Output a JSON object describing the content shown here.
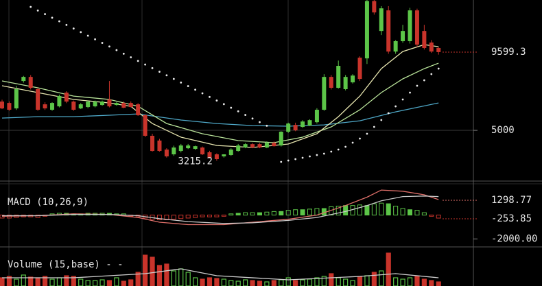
{
  "chart_data": [
    {
      "type": "candlestick",
      "up_color": "#5cc548",
      "down_color": "#c9342b",
      "open": [
        6690,
        6610,
        6290,
        7900,
        8140,
        7420,
        6530,
        6210,
        6410,
        7220,
        6690,
        6290,
        6370,
        6410,
        6490,
        6810,
        6490,
        6610,
        6610,
        6530,
        5890,
        4680,
        4400,
        3870,
        3590,
        3790,
        3950,
        3910,
        3990,
        3710,
        3590,
        3470,
        3550,
        3790,
        3990,
        4190,
        4190,
        3990,
        4270,
        4110,
        4920,
        5320,
        5200,
        5280,
        5480,
        6210,
        8140,
        7500,
        7420,
        7820,
        9270,
        9230,
        12600,
        10840,
        12050,
        9630,
        10240,
        10240,
        12050,
        10840,
        10160,
        9840
      ],
      "high": [
        6800,
        6700,
        7620,
        8200,
        8250,
        7500,
        6650,
        6650,
        7100,
        7300,
        6750,
        6600,
        6750,
        6750,
        6750,
        7900,
        6650,
        6700,
        6700,
        6600,
        5950,
        4800,
        4500,
        3950,
        4100,
        4200,
        4200,
        4100,
        4050,
        3800,
        3650,
        3600,
        3950,
        4200,
        4250,
        4250,
        4250,
        4350,
        4350,
        4950,
        5450,
        5450,
        5600,
        5650,
        6300,
        8300,
        8250,
        9100,
        8250,
        8300,
        9350,
        12660,
        12660,
        12300,
        12300,
        10300,
        11200,
        12200,
        12150,
        11200,
        10300,
        9900
      ],
      "low": [
        6250,
        6150,
        6200,
        7800,
        7400,
        6150,
        6200,
        6150,
        6350,
        6600,
        6150,
        6250,
        6300,
        6350,
        6450,
        6350,
        6450,
        6300,
        6350,
        5850,
        4600,
        3750,
        3750,
        3400,
        3500,
        3700,
        3900,
        3850,
        3550,
        3350,
        3215.2,
        3400,
        3500,
        3750,
        3950,
        3950,
        3950,
        3950,
        4050,
        4050,
        4850,
        4950,
        5150,
        5250,
        5400,
        6150,
        7400,
        7450,
        7350,
        7750,
        7900,
        8900,
        11800,
        10600,
        9500,
        9500,
        10150,
        10100,
        9900,
        9750,
        9550,
        9450
      ],
      "close": [
        6290,
        6210,
        7420,
        8140,
        7500,
        6210,
        6290,
        6610,
        7020,
        6690,
        6210,
        6530,
        6690,
        6690,
        6690,
        6410,
        6610,
        6330,
        6370,
        5890,
        4680,
        3790,
        3790,
        3470,
        3990,
        4110,
        4110,
        4070,
        3590,
        3390,
        3310,
        3590,
        3870,
        4110,
        4190,
        3990,
        3990,
        4270,
        4070,
        4920,
        5400,
        5000,
        5520,
        5600,
        6210,
        8140,
        7500,
        8790,
        8140,
        8220,
        8020,
        12600,
        11930,
        12170,
        9630,
        10240,
        10840,
        12050,
        10040,
        9840,
        9630,
        9599.3
      ],
      "series": [
        {
          "color": "#4fa9c9",
          "x": [
            0,
            5,
            10,
            15,
            19,
            25,
            30,
            35,
            40,
            45,
            50,
            55,
            61
          ],
          "values": [
            5725,
            5806,
            5806,
            5887,
            5967,
            5605,
            5403,
            5282,
            5242,
            5322,
            5564,
            6088,
            6612
          ]
        },
        {
          "color": "#b9e39a",
          "x": [
            0,
            5,
            10,
            15,
            19,
            23,
            28,
            33,
            38,
            42,
            46,
            50,
            53,
            56,
            59,
            61
          ],
          "values": [
            7902,
            7499,
            7015,
            6814,
            6411,
            5403,
            4799,
            4396,
            4275,
            4597,
            5202,
            6209,
            7217,
            8023,
            8627,
            8949
          ]
        },
        {
          "color": "#e8e6b0",
          "x": [
            0,
            5,
            10,
            15,
            18,
            21,
            25,
            30,
            35,
            40,
            44,
            47,
            50,
            53,
            56,
            59,
            61
          ],
          "values": [
            7620,
            7217,
            6814,
            6612,
            6411,
            5403,
            4597,
            4113,
            3993,
            4194,
            4799,
            5806,
            7015,
            8627,
            9635,
            10038,
            9917
          ]
        }
      ],
      "sar": [
        null,
        null,
        null,
        null,
        12254,
        12042,
        11831,
        11619,
        11408,
        11196,
        10984,
        10773,
        10561,
        10350,
        10138,
        9926,
        9715,
        9503,
        9292,
        9080,
        8868,
        8657,
        8445,
        8234,
        8022,
        7810,
        7599,
        7387,
        7176,
        6964,
        6752,
        6541,
        6329,
        6118,
        5906,
        5694,
        5483,
        5271,
        null,
        3146,
        3227,
        3307,
        3388,
        3469,
        3549,
        3630,
        3751,
        3872,
        4033,
        4275,
        4516,
        4799,
        5202,
        5605,
        6008,
        6411,
        6814,
        7217,
        7620,
        7942,
        8305,
        8627
      ],
      "ylim": [
        2100,
        12660
      ],
      "yticks": [
        5000
      ],
      "grid": true
    },
    {
      "type": "macd",
      "title": "MACD (10,26,9)",
      "hist": [
        -250,
        -250,
        -200,
        -150,
        -150,
        -200,
        -100,
        100,
        150,
        150,
        100,
        100,
        150,
        150,
        150,
        150,
        100,
        100,
        -100,
        -150,
        -250,
        -350,
        -400,
        -400,
        -350,
        -300,
        -250,
        -200,
        -150,
        -150,
        -150,
        -100,
        100,
        150,
        200,
        200,
        200,
        250,
        300,
        300,
        400,
        450,
        450,
        500,
        550,
        550,
        700,
        750,
        800,
        800,
        850,
        800,
        950,
        1000,
        950,
        750,
        550,
        450,
        400,
        200,
        -100,
        -253.85
      ],
      "up_color": "#5cc548",
      "down_color": "#c9342b",
      "series": [
        {
          "color": "#e0706a",
          "x": [
            0,
            5,
            10,
            15,
            19,
            22,
            26,
            31,
            35,
            40,
            44,
            48,
            51,
            53,
            56,
            59,
            61
          ],
          "values": [
            -100,
            -50,
            100,
            50,
            -200,
            -600,
            -800,
            -800,
            -600,
            -350,
            0,
            800,
            1500,
            2100,
            2000,
            1700,
            1298.77
          ]
        },
        {
          "color": "#c8c8c8",
          "x": [
            0,
            5,
            10,
            15,
            19,
            22,
            26,
            31,
            35,
            40,
            44,
            48,
            51,
            53,
            56,
            59,
            61
          ],
          "values": [
            -50,
            -50,
            50,
            50,
            -50,
            -300,
            -550,
            -700,
            -650,
            -450,
            -200,
            300,
            800,
            1200,
            1550,
            1600,
            1552
          ]
        }
      ],
      "ylim": [
        -2209,
        2391
      ],
      "yticks": [
        {
          "value": -2000,
          "label": "-2000.00"
        }
      ]
    },
    {
      "type": "volume",
      "title": "Volume (15,base) - -",
      "values": [
        12,
        14,
        10,
        16,
        13,
        12,
        14,
        10,
        12,
        15,
        14,
        10,
        8,
        8,
        9,
        8,
        12,
        7,
        9,
        20,
        45,
        42,
        30,
        32,
        22,
        25,
        20,
        12,
        10,
        12,
        11,
        10,
        8,
        7,
        9,
        8,
        7,
        6,
        8,
        9,
        12,
        8,
        9,
        10,
        12,
        14,
        18,
        12,
        10,
        8,
        14,
        15,
        20,
        22,
        48,
        12,
        10,
        12,
        14,
        10,
        8,
        6
      ],
      "series": [
        {
          "color": "#d0d0d0",
          "x": [
            0,
            10,
            20,
            25,
            30,
            40,
            50,
            55,
            61
          ],
          "values": [
            12,
            12,
            18,
            25,
            15,
            9,
            14,
            18,
            12
          ]
        }
      ],
      "ylim": [
        0,
        52
      ]
    }
  ]
}
